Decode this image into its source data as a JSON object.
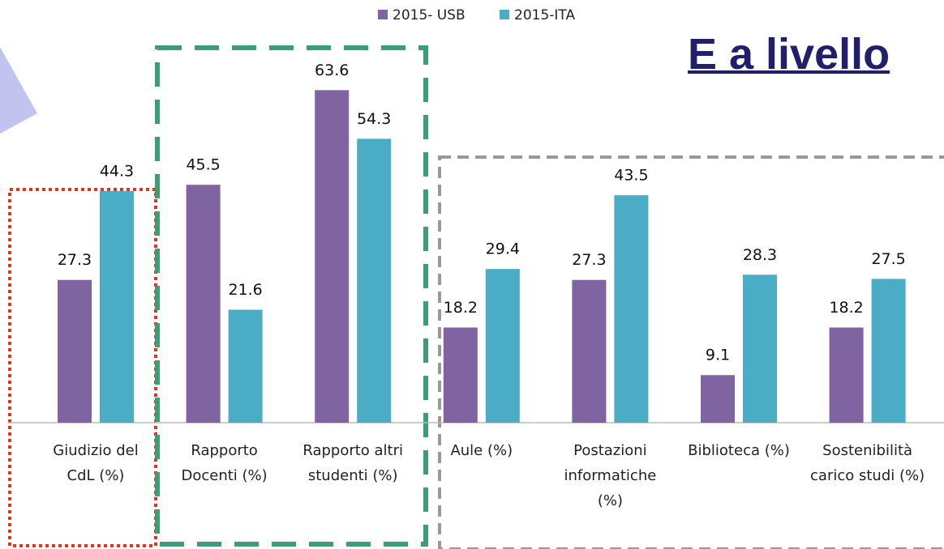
{
  "heading": "E a livello",
  "chart_data": {
    "type": "bar",
    "categories": [
      "Giudizio del\nCdL (%)",
      "Rapporto\nDocenti  (%)",
      "Rapporto altri\nstudenti (%)",
      "Aule (%)",
      "Postazioni\ninformatiche\n(%)",
      "Biblioteca (%)",
      "Sostenibilità\ncarico studi (%)"
    ],
    "series": [
      {
        "name": "2015- USB",
        "color": "#8064a2",
        "values": [
          27.3,
          45.5,
          63.6,
          18.2,
          27.3,
          9.1,
          18.2
        ]
      },
      {
        "name": "2015-ITA",
        "color": "#4bacc6",
        "values": [
          44.3,
          21.6,
          54.3,
          29.4,
          43.5,
          28.3,
          27.5
        ]
      }
    ],
    "ylim": [
      0,
      70
    ]
  }
}
